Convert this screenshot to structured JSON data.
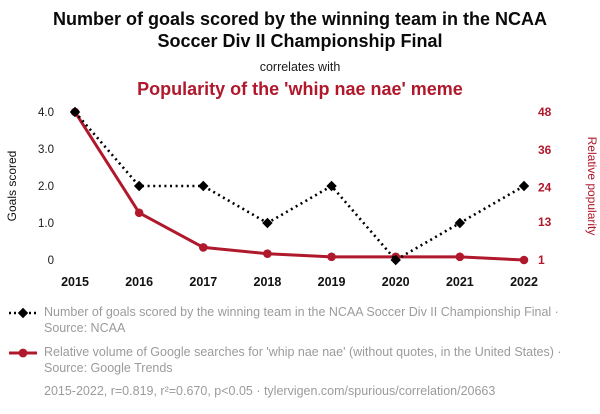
{
  "page": {
    "title": "Number of goals scored by the winning team in the NCAA Soccer Div II Championship Final",
    "correlates_with": "correlates with",
    "subtitle": "Popularity of the 'whip nae nae' meme"
  },
  "colors": {
    "accent_red": "#b0182c",
    "series_black": "#000000",
    "legend_gray": "#9b9b9b"
  },
  "legend": {
    "items": [
      {
        "label": "Number of goals scored by the winning team in the NCAA Soccer Div II Championship Final · Source: NCAA"
      },
      {
        "label": "Relative volume of Google searches for 'whip nae nae' (without quotes, in the United States) · Source: Google Trends"
      }
    ]
  },
  "footer": {
    "text": "2015-2022, r=0.819, r²=0.670, p<0.05 · tylervigen.com/spurious/correlation/20663"
  },
  "chart_data": {
    "type": "line",
    "x": [
      2015,
      2016,
      2017,
      2018,
      2019,
      2020,
      2021,
      2022
    ],
    "series": [
      {
        "name": "Number of goals scored by the winning team in the NCAA Soccer Div II Championship Final",
        "axis": "left",
        "color": "#000000",
        "line_style": "dotted",
        "marker": "diamond",
        "values": [
          4,
          2,
          2,
          1,
          2,
          0,
          1,
          2
        ]
      },
      {
        "name": "Relative volume of Google searches for 'whip nae nae'",
        "axis": "right",
        "color": "#b0182c",
        "line_style": "solid",
        "marker": "circle",
        "values": [
          48,
          16,
          5,
          3,
          2,
          2,
          2,
          1
        ]
      }
    ],
    "left_axis": {
      "label": "Goals scored",
      "ticks": [
        0,
        1,
        2,
        3,
        4
      ],
      "tick_labels": [
        "0",
        "1.0",
        "2.0",
        "3.0",
        "4.0"
      ],
      "range": [
        0,
        4
      ]
    },
    "right_axis": {
      "label": "Relative popularity",
      "ticks": [
        1,
        13,
        24,
        36,
        48
      ],
      "tick_labels": [
        "1",
        "13",
        "24",
        "36",
        "48"
      ],
      "range": [
        1,
        48
      ]
    },
    "x_axis": {
      "tick_labels": [
        "2015",
        "2016",
        "2017",
        "2018",
        "2019",
        "2020",
        "2021",
        "2022"
      ]
    },
    "grid": false,
    "legend_position": "bottom"
  }
}
